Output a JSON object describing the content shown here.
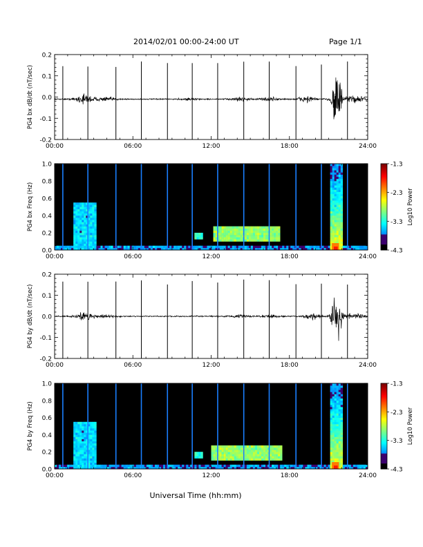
{
  "header": {
    "title": "2014/02/01   00:00-24:00 UT",
    "page": "Page 1/1"
  },
  "footer": {
    "xlabel": "Universal Time (hh:mm)"
  },
  "chart_data": [
    {
      "type": "line",
      "title": "",
      "ylabel": "PG4 bx dB/dt (nT/sec)",
      "xlabel": "",
      "xlim": [
        0,
        24
      ],
      "ylim": [
        -0.2,
        0.2
      ],
      "xtick_labels": [
        "00:00",
        "06:00",
        "12:00",
        "18:00",
        "24:00"
      ],
      "ytick_labels": [
        "0.2",
        "0.1",
        "0.0",
        "-0.1",
        "-0.2"
      ],
      "baseline": -0.01,
      "spike_times_h": [
        0.63,
        2.55,
        4.7,
        6.65,
        8.65,
        10.55,
        12.5,
        14.5,
        16.45,
        18.5,
        20.45,
        22.45
      ],
      "activity_bursts": [
        {
          "center_h": 2.3,
          "amplitude": 0.03
        },
        {
          "center_h": 4.0,
          "amplitude": 0.012
        },
        {
          "center_h": 10.3,
          "amplitude": 0.006
        },
        {
          "center_h": 14.2,
          "amplitude": 0.01
        },
        {
          "center_h": 16.5,
          "amplitude": 0.012
        },
        {
          "center_h": 19.3,
          "amplitude": 0.02
        },
        {
          "center_h": 21.6,
          "amplitude": 0.22
        },
        {
          "center_h": 23.0,
          "amplitude": 0.025
        }
      ]
    },
    {
      "type": "heatmap",
      "title": "",
      "ylabel": "PG4 bx Freq (Hz)",
      "xlabel": "",
      "xlim": [
        0,
        24
      ],
      "ylim": [
        0,
        1.0
      ],
      "xtick_labels": [
        "00:00",
        "06:00",
        "12:00",
        "18:00",
        "24:00"
      ],
      "ytick_labels": [
        "1.0",
        "0.8",
        "0.6",
        "0.4",
        "0.2",
        "0.0"
      ],
      "colorbar": {
        "label": "Log10 Power",
        "range": [
          -4.3,
          -1.3
        ],
        "tick_labels": [
          "-1.3",
          "-2.3",
          "-3.3",
          "-4.3"
        ]
      },
      "spike_times_h": [
        0.63,
        2.55,
        4.7,
        6.65,
        8.65,
        10.55,
        12.5,
        14.5,
        16.45,
        18.5,
        20.45,
        22.45
      ],
      "features": [
        {
          "t0": 1.5,
          "t1": 3.2,
          "f0": 0.0,
          "f1": 0.55,
          "level": -3.5
        },
        {
          "t0": 10.7,
          "t1": 11.3,
          "f0": 0.12,
          "f1": 0.2,
          "level": -3.2
        },
        {
          "t0": 12.2,
          "t1": 17.3,
          "f0": 0.1,
          "f1": 0.28,
          "level": -2.9
        },
        {
          "t0": 21.1,
          "t1": 22.0,
          "f0": 0.0,
          "f1": 1.0,
          "level": -2.6
        },
        {
          "t0": 0.0,
          "t1": 24.0,
          "f0": 0.0,
          "f1": 0.06,
          "level": -3.7
        }
      ]
    },
    {
      "type": "line",
      "title": "",
      "ylabel": "PG4 by dB/dt (nT/sec)",
      "xlabel": "",
      "xlim": [
        0,
        24
      ],
      "ylim": [
        -0.2,
        0.2
      ],
      "xtick_labels": [
        "00:00",
        "06:00",
        "12:00",
        "18:00",
        "24:00"
      ],
      "ytick_labels": [
        "0.2",
        "0.1",
        "0.0",
        "-0.1",
        "-0.2"
      ],
      "baseline": 0.0,
      "spike_times_h": [
        0.63,
        2.55,
        4.7,
        6.65,
        8.65,
        10.55,
        12.5,
        14.5,
        16.45,
        18.5,
        20.45,
        22.45
      ],
      "activity_bursts": [
        {
          "center_h": 2.3,
          "amplitude": 0.025
        },
        {
          "center_h": 4.0,
          "amplitude": 0.01
        },
        {
          "center_h": 14.2,
          "amplitude": 0.008
        },
        {
          "center_h": 16.5,
          "amplitude": 0.01
        },
        {
          "center_h": 19.8,
          "amplitude": 0.02
        },
        {
          "center_h": 21.6,
          "amplitude": 0.2
        },
        {
          "center_h": 23.0,
          "amplitude": 0.02
        }
      ]
    },
    {
      "type": "heatmap",
      "title": "",
      "ylabel": "PG4 by Freq (Hz)",
      "xlabel": "",
      "xlim": [
        0,
        24
      ],
      "ylim": [
        0,
        1.0
      ],
      "xtick_labels": [
        "00:00",
        "06:00",
        "12:00",
        "18:00",
        "24:00"
      ],
      "ytick_labels": [
        "1.0",
        "0.8",
        "0.6",
        "0.4",
        "0.2",
        "0.0"
      ],
      "colorbar": {
        "label": "Log10 Power",
        "range": [
          -4.3,
          -1.3
        ],
        "tick_labels": [
          "-1.3",
          "-2.3",
          "-3.3",
          "-4.3"
        ]
      },
      "spike_times_h": [
        0.63,
        2.55,
        4.7,
        6.65,
        8.65,
        10.55,
        12.5,
        14.5,
        16.45,
        18.5,
        20.45,
        22.45
      ],
      "features": [
        {
          "t0": 1.5,
          "t1": 3.2,
          "f0": 0.0,
          "f1": 0.55,
          "level": -3.5
        },
        {
          "t0": 10.8,
          "t1": 11.4,
          "f0": 0.12,
          "f1": 0.2,
          "level": -3.3
        },
        {
          "t0": 12.0,
          "t1": 17.5,
          "f0": 0.1,
          "f1": 0.28,
          "level": -2.9
        },
        {
          "t0": 21.1,
          "t1": 22.0,
          "f0": 0.0,
          "f1": 1.0,
          "level": -2.6
        },
        {
          "t0": 0.0,
          "t1": 24.0,
          "f0": 0.0,
          "f1": 0.06,
          "level": -3.7
        }
      ]
    }
  ]
}
